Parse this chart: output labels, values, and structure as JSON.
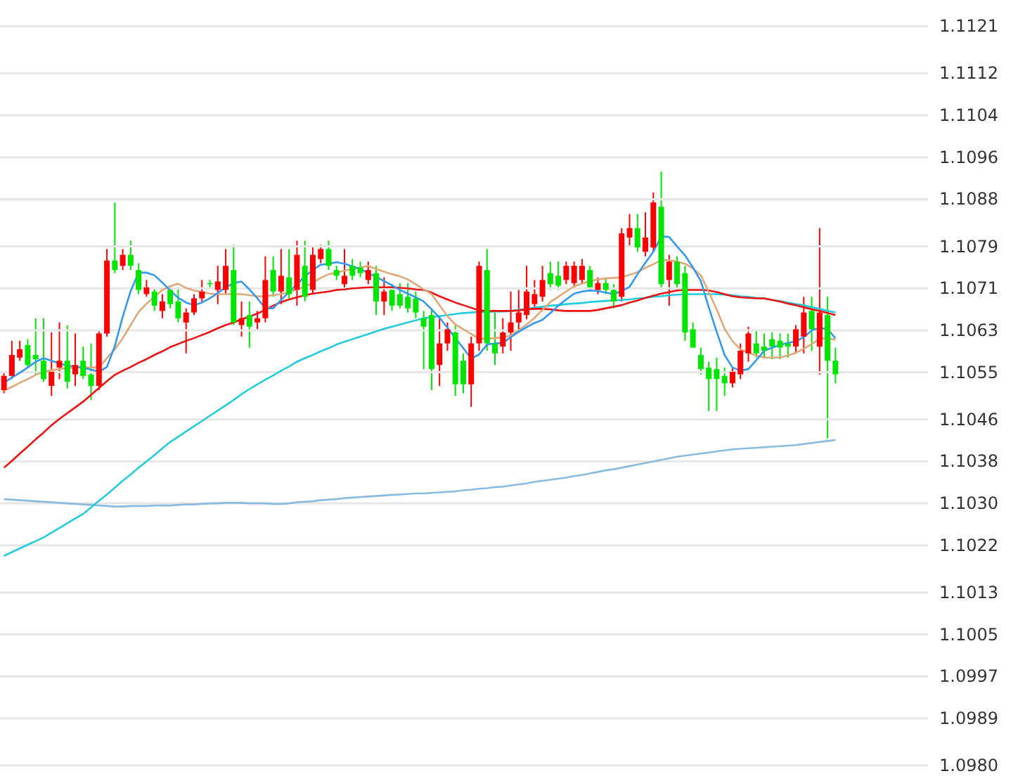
{
  "chart_data": {
    "type": "candlestick",
    "grid": "y",
    "tick_labels": "y",
    "ylim": [
      1.0978,
      1.1126
    ],
    "yticks": [
      {
        "value": 1.098,
        "label": "1.0980"
      },
      1.0989,
      1.0997,
      1.1005,
      1.1013,
      1.1022,
      {
        "value": 1.103,
        "label": "1.1030"
      },
      1.1038,
      1.1046,
      1.1055,
      1.1063,
      1.1071,
      1.1079,
      1.1088,
      1.1096,
      1.1104,
      1.1112,
      1.1121
    ],
    "categories": [
      null,
      null,
      null,
      null,
      null,
      null,
      null,
      null,
      null,
      null,
      null,
      null,
      null,
      null,
      null,
      null,
      null,
      null,
      null,
      null,
      null,
      null,
      null,
      null,
      null,
      null,
      null,
      null,
      null,
      null,
      null,
      null,
      null,
      null,
      null,
      null,
      null,
      null,
      null,
      null,
      null,
      null,
      null,
      null,
      null,
      null,
      null,
      null,
      null,
      null,
      null,
      null,
      null,
      null,
      null,
      null,
      null,
      null,
      null,
      null,
      null,
      null,
      null,
      null,
      null,
      null,
      null,
      null,
      null,
      null,
      null,
      null,
      null,
      null,
      null,
      null,
      null,
      null,
      null,
      null,
      null,
      null,
      null,
      null,
      null,
      null,
      null,
      null,
      null,
      null,
      null,
      null,
      null,
      null,
      null,
      null,
      null,
      null,
      null,
      null,
      null,
      null,
      null,
      null,
      null,
      null
    ],
    "ohlc": [
      [
        1.10516,
        1.10548,
        1.1051,
        1.10543
      ],
      [
        1.10543,
        1.1061,
        1.10537,
        1.10583
      ],
      [
        1.10578,
        1.1061,
        1.10572,
        1.10594
      ],
      [
        1.10602,
        1.10613,
        1.10559,
        1.10564
      ],
      [
        1.10583,
        1.10653,
        1.10546,
        1.10575
      ],
      [
        1.10572,
        1.10653,
        1.10532,
        1.10537
      ],
      [
        1.10524,
        1.10626,
        1.10505,
        1.10551
      ],
      [
        1.10559,
        1.10645,
        1.10537,
        1.10572
      ],
      [
        1.10572,
        1.1064,
        1.10519,
        1.10532
      ],
      [
        1.10546,
        1.10624,
        1.10524,
        1.10564
      ],
      [
        1.10572,
        1.10599,
        1.10537,
        1.10543
      ],
      [
        1.10546,
        1.10605,
        1.10497,
        1.10524
      ],
      [
        1.10524,
        1.10629,
        1.10516,
        1.10624
      ],
      [
        1.10624,
        1.10785,
        1.10618,
        1.10763
      ],
      [
        1.10763,
        1.10874,
        1.10739,
        1.10745
      ],
      [
        1.10753,
        1.10785,
        1.10745,
        1.10774
      ],
      [
        1.10774,
        1.10801,
        1.10745,
        1.10753
      ],
      [
        1.10745,
        1.10758,
        1.10699,
        1.10707
      ],
      [
        1.10699,
        1.10726,
        1.10694,
        1.10712
      ],
      [
        1.10704,
        1.10712,
        1.10667,
        1.10677
      ],
      [
        1.10667,
        1.10699,
        1.10653,
        1.10685
      ],
      [
        1.10707,
        1.10712,
        1.10672,
        1.1068
      ],
      [
        1.10685,
        1.10712,
        1.10645,
        1.10653
      ],
      [
        1.10645,
        1.10672,
        1.10586,
        1.10664
      ],
      [
        1.10664,
        1.10699,
        1.10659,
        1.10691
      ],
      [
        1.10691,
        1.10726,
        1.10685,
        1.10704
      ],
      [
        1.1072,
        1.10726,
        1.10712,
        1.10718
      ],
      [
        1.10707,
        1.10753,
        1.1068,
        1.10723
      ],
      [
        1.10707,
        1.10785,
        1.10699,
        1.10753
      ],
      [
        1.10745,
        1.10793,
        1.1064,
        1.10645
      ],
      [
        1.1064,
        1.10685,
        1.10618,
        1.10653
      ],
      [
        1.10659,
        1.10685,
        1.10597,
        1.10637
      ],
      [
        1.10645,
        1.10667,
        1.10632,
        1.10653
      ],
      [
        1.10653,
        1.10771,
        1.10645,
        1.10726
      ],
      [
        1.10745,
        1.10771,
        1.10694,
        1.10704
      ],
      [
        1.10704,
        1.10785,
        1.1068,
        1.10734
      ],
      [
        1.10731,
        1.10785,
        1.10691,
        1.10699
      ],
      [
        1.10707,
        1.10801,
        1.10677,
        1.10774
      ],
      [
        1.10753,
        1.10801,
        1.10685,
        1.10694
      ],
      [
        1.10707,
        1.10788,
        1.10699,
        1.10774
      ],
      [
        1.10766,
        1.10793,
        1.10758,
        1.10785
      ],
      [
        1.10785,
        1.10801,
        1.10745,
        1.10753
      ],
      [
        1.10745,
        1.10753,
        1.10726,
        1.10734
      ],
      [
        1.10718,
        1.10785,
        1.10707,
        1.10734
      ],
      [
        1.10753,
        1.10766,
        1.10726,
        1.10734
      ],
      [
        1.1075,
        1.10761,
        1.10731,
        1.10739
      ],
      [
        1.10726,
        1.10761,
        1.10718,
        1.10745
      ],
      [
        1.10739,
        1.10753,
        1.10659,
        1.10685
      ],
      [
        1.10685,
        1.10731,
        1.10659,
        1.10704
      ],
      [
        1.10707,
        1.10718,
        1.10667,
        1.10677
      ],
      [
        1.10699,
        1.1072,
        1.10672,
        1.10677
      ],
      [
        1.10694,
        1.1072,
        1.10664,
        1.10672
      ],
      [
        1.10691,
        1.10704,
        1.10653,
        1.10664
      ],
      [
        1.10653,
        1.10667,
        1.10556,
        1.10637
      ],
      [
        1.10659,
        1.10672,
        1.10516,
        1.10556
      ],
      [
        1.10564,
        1.10653,
        1.10524,
        1.10605
      ],
      [
        1.10605,
        1.10645,
        1.10591,
        1.10632
      ],
      [
        1.10626,
        1.1064,
        1.10505,
        1.10527
      ],
      [
        1.10572,
        1.10586,
        1.1051,
        1.10527
      ],
      [
        1.10527,
        1.10618,
        1.10484,
        1.10605
      ],
      [
        1.10605,
        1.10761,
        1.10591,
        1.10753
      ],
      [
        1.10745,
        1.10785,
        1.10591,
        1.10605
      ],
      [
        1.10605,
        1.10664,
        1.10564,
        1.10586
      ],
      [
        1.10599,
        1.10653,
        1.10586,
        1.10626
      ],
      [
        1.10626,
        1.10704,
        1.10591,
        1.10645
      ],
      [
        1.10645,
        1.10707,
        1.10632,
        1.10664
      ],
      [
        1.10659,
        1.10753,
        1.10651,
        1.10704
      ],
      [
        1.1068,
        1.10726,
        1.10672,
        1.10699
      ],
      [
        1.10694,
        1.10753,
        1.10685,
        1.10726
      ],
      [
        1.10739,
        1.10761,
        1.10707,
        1.10718
      ],
      [
        1.10734,
        1.10761,
        1.10707,
        1.10715
      ],
      [
        1.10726,
        1.10761,
        1.10718,
        1.10753
      ],
      [
        1.1072,
        1.10761,
        1.10712,
        1.10753
      ],
      [
        1.10726,
        1.10766,
        1.10718,
        1.10753
      ],
      [
        1.10745,
        1.10753,
        1.10704,
        1.10712
      ],
      [
        1.10707,
        1.10731,
        1.10699,
        1.1072
      ],
      [
        1.1072,
        1.10731,
        1.10699,
        1.10707
      ],
      [
        1.10707,
        1.10718,
        1.10672,
        1.10685
      ],
      [
        1.10694,
        1.10825,
        1.10685,
        1.10815
      ],
      [
        1.10807,
        1.10852,
        1.10788,
        1.10825
      ],
      [
        1.10825,
        1.10852,
        1.1078,
        1.10788
      ],
      [
        1.1078,
        1.10855,
        1.10771,
        1.10807
      ],
      [
        1.10788,
        1.10893,
        1.1078,
        1.10874
      ],
      [
        1.10866,
        1.10933,
        1.10707,
        1.10718
      ],
      [
        1.10726,
        1.10774,
        1.10677,
        1.10761
      ],
      [
        1.10761,
        1.10771,
        1.10707,
        1.10718
      ],
      [
        1.10739,
        1.10753,
        1.1061,
        1.10626
      ],
      [
        1.10632,
        1.10645,
        1.10597,
        1.10597
      ],
      [
        1.10583,
        1.10597,
        1.10546,
        1.10556
      ],
      [
        1.10559,
        1.1057,
        1.10476,
        1.10537
      ],
      [
        1.10556,
        1.10578,
        1.10476,
        1.10537
      ],
      [
        1.10543,
        1.10559,
        1.10505,
        1.10529
      ],
      [
        1.10529,
        1.10559,
        1.10521,
        1.10551
      ],
      [
        1.10546,
        1.10605,
        1.10537,
        1.10591
      ],
      [
        1.10586,
        1.10637,
        1.1057,
        1.10624
      ],
      [
        1.10605,
        1.10632,
        1.10578,
        1.10586
      ],
      [
        1.10599,
        1.10624,
        1.10578,
        1.10591
      ],
      [
        1.10613,
        1.10626,
        1.10575,
        1.10599
      ],
      [
        1.1061,
        1.10624,
        1.10575,
        1.10597
      ],
      [
        1.10605,
        1.10624,
        1.10578,
        1.10599
      ],
      [
        1.10599,
        1.1064,
        1.10586,
        1.10632
      ],
      [
        1.10618,
        1.10694,
        1.10586,
        1.10664
      ],
      [
        1.10667,
        1.10694,
        1.10591,
        1.10632
      ],
      [
        1.10599,
        1.10825,
        1.10546,
        1.10664
      ],
      [
        1.10659,
        1.10694,
        1.10424,
        1.10572
      ],
      [
        1.10572,
        1.10597,
        1.10529,
        1.10546
      ]
    ],
    "colors": [
      "#ff0000",
      "#ff0000",
      "#ff0000",
      "#00e600",
      "#00e600",
      "#00e600",
      "#ff0000",
      "#ff0000",
      "#00e600",
      "#ff0000",
      "#00e600",
      "#00e600",
      "#ff0000",
      "#ff0000",
      "#00e600",
      "#ff0000",
      "#00e600",
      "#00e600",
      "#ff0000",
      "#00e600",
      "#ff0000",
      "#00e600",
      "#00e600",
      "#ff0000",
      "#ff0000",
      "#ff0000",
      "#00e600",
      "#ff0000",
      "#ff0000",
      "#00e600",
      "#ff0000",
      "#00e600",
      "#ff0000",
      "#ff0000",
      "#00e600",
      "#ff0000",
      "#00e600",
      "#ff0000",
      "#00e600",
      "#ff0000",
      "#ff0000",
      "#00e600",
      "#00e600",
      "#ff0000",
      "#00e600",
      "#00e600",
      "#ff0000",
      "#00e600",
      "#ff0000",
      "#00e600",
      "#00e600",
      "#00e600",
      "#00e600",
      "#00e600",
      "#00e600",
      "#ff0000",
      "#ff0000",
      "#00e600",
      "#00e600",
      "#ff0000",
      "#ff0000",
      "#00e600",
      "#00e600",
      "#ff0000",
      "#ff0000",
      "#ff0000",
      "#ff0000",
      "#ff0000",
      "#ff0000",
      "#00e600",
      "#00e600",
      "#ff0000",
      "#ff0000",
      "#ff0000",
      "#00e600",
      "#ff0000",
      "#00e600",
      "#00e600",
      "#ff0000",
      "#ff0000",
      "#00e600",
      "#ff0000",
      "#ff0000",
      "#00e600",
      "#ff0000",
      "#00e600",
      "#00e600",
      "#00e600",
      "#00e600",
      "#00e600",
      "#00e600",
      "#00e600",
      "#ff0000",
      "#ff0000",
      "#ff0000",
      "#00e600",
      "#00e600",
      "#00e600",
      "#00e600",
      "#00e600",
      "#ff0000",
      "#ff0000",
      "#00e600",
      "#ff0000",
      "#00e600",
      "#00e600"
    ],
    "series": [
      {
        "type": "line",
        "color": "#88bbdd",
        "values": [
          1.10308,
          1.10307,
          1.10306,
          1.10305,
          1.10304,
          1.10303,
          1.10302,
          1.10301,
          1.103,
          1.10299,
          1.10298,
          1.10297,
          1.10296,
          1.10295,
          1.10294,
          1.10294,
          1.10295,
          1.10295,
          1.10295,
          1.10296,
          1.10296,
          1.10296,
          1.10297,
          1.10298,
          1.10298,
          1.10299,
          1.103,
          1.103,
          1.10301,
          1.10301,
          1.10301,
          1.103,
          1.103,
          1.103,
          1.10299,
          1.10299,
          1.103,
          1.10302,
          1.10303,
          1.10304,
          1.10306,
          1.10307,
          1.10308,
          1.1031,
          1.10311,
          1.10312,
          1.10313,
          1.10314,
          1.10315,
          1.10316,
          1.10317,
          1.10318,
          1.10319,
          1.10319,
          1.1032,
          1.10321,
          1.10322,
          1.10323,
          1.10325,
          1.10326,
          1.10328,
          1.10329,
          1.10331,
          1.10332,
          1.10334,
          1.10336,
          1.10338,
          1.10341,
          1.10343,
          1.10345,
          1.10347,
          1.10349,
          1.10352,
          1.10354,
          1.10357,
          1.1036,
          1.10363,
          1.10365,
          1.10368,
          1.10371,
          1.10374,
          1.10377,
          1.1038,
          1.10383,
          1.10386,
          1.10389,
          1.10391,
          1.10393,
          1.10395,
          1.10397,
          1.10399,
          1.10401,
          1.10403,
          1.10404,
          1.10405,
          1.10406,
          1.10407,
          1.10408,
          1.10409,
          1.1041,
          1.10411,
          1.10413,
          1.10415,
          1.10417,
          1.10419,
          1.10421
        ]
      },
      {
        "type": "line",
        "color": "#22ccdd",
        "values": [
          1.102,
          1.10207,
          1.10214,
          1.10221,
          1.10228,
          1.10235,
          1.10244,
          1.10253,
          1.10262,
          1.10271,
          1.1028,
          1.10292,
          1.10305,
          1.10317,
          1.1033,
          1.10343,
          1.10355,
          1.10368,
          1.1038,
          1.10392,
          1.10405,
          1.10417,
          1.10427,
          1.10437,
          1.10447,
          1.10457,
          1.10467,
          1.10477,
          1.10487,
          1.10497,
          1.10508,
          1.10518,
          1.10527,
          1.10536,
          1.10544,
          1.10553,
          1.10561,
          1.1057,
          1.10577,
          1.10583,
          1.1059,
          1.10596,
          1.10603,
          1.10608,
          1.10613,
          1.10618,
          1.10623,
          1.10628,
          1.10633,
          1.10637,
          1.10641,
          1.10645,
          1.10649,
          1.10653,
          1.10655,
          1.10657,
          1.10659,
          1.10661,
          1.10663,
          1.10664,
          1.10665,
          1.10665,
          1.10666,
          1.10666,
          1.10667,
          1.10669,
          1.10671,
          1.10673,
          1.10675,
          1.10677,
          1.10678,
          1.1068,
          1.10681,
          1.10682,
          1.10684,
          1.10685,
          1.10686,
          1.10687,
          1.10688,
          1.10689,
          1.10691,
          1.10692,
          1.10694,
          1.10695,
          1.10697,
          1.10698,
          1.10699,
          1.10699,
          1.10699,
          1.10699,
          1.10699,
          1.10698,
          1.10697,
          1.10695,
          1.10694,
          1.10692,
          1.10691,
          1.10688,
          1.10686,
          1.10683,
          1.1068,
          1.10678,
          1.10674,
          1.10671,
          1.10667,
          1.10664
        ]
      },
      {
        "type": "line",
        "color": "#ee1111",
        "values": [
          1.10368,
          1.10381,
          1.10395,
          1.10408,
          1.10422,
          1.10435,
          1.10449,
          1.10461,
          1.10472,
          1.10483,
          1.10494,
          1.10507,
          1.1052,
          1.10533,
          1.10545,
          1.10553,
          1.1056,
          1.10568,
          1.10575,
          1.10583,
          1.1059,
          1.10598,
          1.10604,
          1.1061,
          1.10615,
          1.10621,
          1.10627,
          1.10634,
          1.1064,
          1.10645,
          1.10651,
          1.10656,
          1.10662,
          1.10669,
          1.10677,
          1.10684,
          1.10689,
          1.10693,
          1.10697,
          1.107,
          1.10702,
          1.10704,
          1.10707,
          1.10708,
          1.1071,
          1.10711,
          1.10712,
          1.10712,
          1.10712,
          1.10712,
          1.10711,
          1.1071,
          1.10708,
          1.10707,
          1.10702,
          1.10695,
          1.10689,
          1.10683,
          1.10678,
          1.10673,
          1.10668,
          1.10667,
          1.10667,
          1.10667,
          1.10667,
          1.10668,
          1.1067,
          1.10671,
          1.10671,
          1.1067,
          1.10668,
          1.10667,
          1.10667,
          1.10667,
          1.10667,
          1.10669,
          1.10672,
          1.10675,
          1.10678,
          1.10683,
          1.10687,
          1.10692,
          1.10696,
          1.107,
          1.10703,
          1.10706,
          1.10707,
          1.10707,
          1.10707,
          1.10706,
          1.10703,
          1.10699,
          1.10695,
          1.10693,
          1.10692,
          1.10691,
          1.10691,
          1.10688,
          1.10685,
          1.10681,
          1.10678,
          1.10674,
          1.1067,
          1.10667,
          1.10663,
          1.10659
        ]
      },
      {
        "type": "line",
        "color": "#e0a878",
        "values": [
          1.10515,
          1.10522,
          1.1053,
          1.10537,
          1.10545,
          1.10551,
          1.10554,
          1.10556,
          1.10558,
          1.10559,
          1.10559,
          1.10559,
          1.10559,
          1.10577,
          1.10594,
          1.10615,
          1.1064,
          1.10665,
          1.10681,
          1.10694,
          1.10707,
          1.10714,
          1.10719,
          1.10711,
          1.10706,
          1.10703,
          1.107,
          1.10699,
          1.10699,
          1.10699,
          1.10699,
          1.10697,
          1.10695,
          1.10695,
          1.10697,
          1.10699,
          1.10703,
          1.10708,
          1.10713,
          1.10721,
          1.1073,
          1.10737,
          1.1074,
          1.10744,
          1.10747,
          1.1075,
          1.10753,
          1.10747,
          1.10742,
          1.10737,
          1.10733,
          1.10727,
          1.10718,
          1.10708,
          1.10699,
          1.10678,
          1.10657,
          1.10641,
          1.10632,
          1.10623,
          1.10614,
          1.10614,
          1.10615,
          1.10617,
          1.1062,
          1.1063,
          1.10641,
          1.10654,
          1.10669,
          1.10684,
          1.10694,
          1.10704,
          1.10714,
          1.10719,
          1.10724,
          1.10727,
          1.10729,
          1.1073,
          1.10731,
          1.10736,
          1.10741,
          1.10749,
          1.10756,
          1.10764,
          1.10764,
          1.10761,
          1.10757,
          1.10748,
          1.10735,
          1.10703,
          1.1067,
          1.10633,
          1.10609,
          1.10594,
          1.10587,
          1.10582,
          1.10578,
          1.10578,
          1.10578,
          1.10582,
          1.10587,
          1.10595,
          1.10604,
          1.10614,
          1.10615,
          1.10612
        ]
      },
      {
        "type": "line",
        "color": "#3399ee",
        "values": [
          1.1053,
          1.1054,
          1.10549,
          1.10559,
          1.1057,
          1.10577,
          1.10572,
          1.10567,
          1.10563,
          1.10561,
          1.10559,
          1.10555,
          1.10551,
          1.1056,
          1.106,
          1.10656,
          1.10705,
          1.1074,
          1.1074,
          1.10735,
          1.10721,
          1.10706,
          1.10692,
          1.10683,
          1.10678,
          1.10683,
          1.10691,
          1.10701,
          1.10712,
          1.1072,
          1.10723,
          1.10708,
          1.10691,
          1.10672,
          1.10672,
          1.10688,
          1.10703,
          1.10718,
          1.10733,
          1.10745,
          1.10755,
          1.10757,
          1.1076,
          1.10757,
          1.10752,
          1.10747,
          1.10739,
          1.10732,
          1.10724,
          1.10716,
          1.10707,
          1.107,
          1.10693,
          1.10685,
          1.1067,
          1.10654,
          1.10635,
          1.10615,
          1.10596,
          1.10576,
          1.10584,
          1.10603,
          1.10605,
          1.10606,
          1.10617,
          1.10627,
          1.10636,
          1.10644,
          1.1065,
          1.10663,
          1.10677,
          1.10689,
          1.107,
          1.10704,
          1.10706,
          1.10705,
          1.10702,
          1.10699,
          1.10705,
          1.10713,
          1.10737,
          1.10759,
          1.1078,
          1.10809,
          1.10808,
          1.1079,
          1.10773,
          1.1075,
          1.10724,
          1.10674,
          1.10627,
          1.10583,
          1.10559,
          1.10553,
          1.10556,
          1.10573,
          1.10591,
          1.10597,
          1.10602,
          1.10606,
          1.10609,
          1.10617,
          1.1063,
          1.10635,
          1.10632,
          1.10615
        ]
      }
    ]
  }
}
